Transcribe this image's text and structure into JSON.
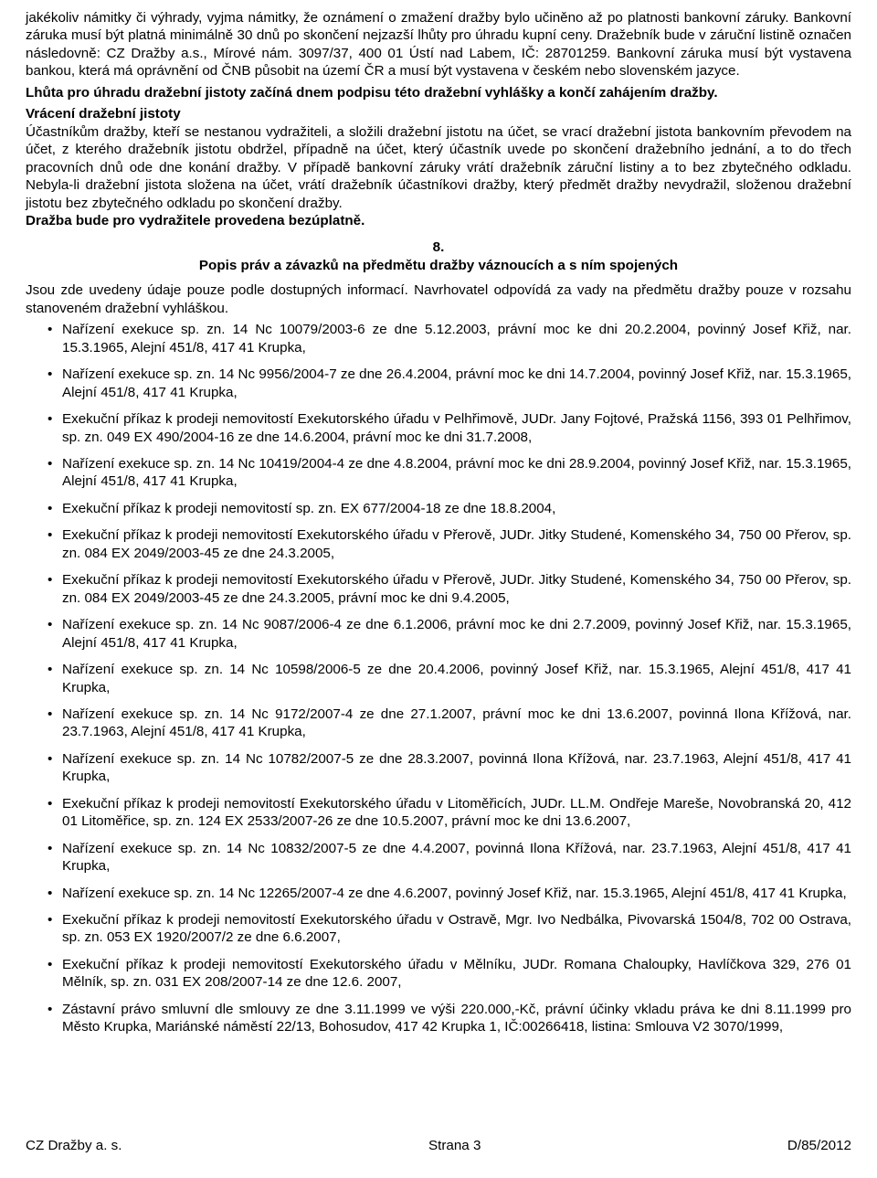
{
  "p1": "jakékoliv námitky či výhrady, vyjma námitky, že oznámení o zmažení dražby bylo učiněno až po platnosti bankovní záruky. Bankovní záruka musí být platná minimálně 30 dnů po skončení nejzazší lhůty pro úhradu kupní ceny. Dražebník bude v záruční listině označen následovně: CZ Dražby a.s., Mírové nám. 3097/37, 400 01 Ústí nad Labem, IČ: 28701259. Bankovní záruka musí být vystavena bankou, která má oprávnění od ČNB působit na území ČR a musí být vystavena v českém nebo slovenském jazyce.",
  "p2": "Lhůta pro úhradu dražební jistoty začíná dnem podpisu této dražební vyhlášky a končí zahájením dražby.",
  "p3_title": "Vrácení dražební jistoty",
  "p3": "Účastníkům dražby, kteří se nestanou vydražiteli, a složili dražební jistotu na účet, se vrací dražební jistota bankovním převodem na účet, z kterého dražebník jistotu obdržel, případně na účet, který účastník uvede po skončení dražebního jednání, a to do třech pracovních dnů ode dne konání dražby. V případě bankovní záruky vrátí dražebník záruční listiny a to bez zbytečného odkladu. Nebyla-li dražební jistota složena na účet, vrátí dražebník účastníkovi dražby, který předmět dražby nevydražil, složenou dražební jistotu bez zbytečného odkladu po skončení dražby.",
  "p4": "Dražba bude pro vydražitele provedena bezúplatně.",
  "section_num": "8.",
  "section_title": "Popis práv a závazků na předmětu dražby váznoucích a s ním spojených",
  "p5": "Jsou zde uvedeny údaje pouze podle dostupných informací. Navrhovatel odpovídá za vady na předmětu dražby pouze v rozsahu stanoveném dražební vyhláškou.",
  "items": [
    "Nařízení exekuce sp. zn. 14 Nc 10079/2003-6 ze dne 5.12.2003, právní moc ke dni 20.2.2004, povinný Josef Křiž, nar. 15.3.1965, Alejní 451/8, 417 41 Krupka,",
    "Nařízení exekuce sp. zn. 14 Nc 9956/2004-7 ze dne 26.4.2004, právní moc ke dni 14.7.2004, povinný Josef Křiž, nar. 15.3.1965, Alejní 451/8, 417 41 Krupka,",
    "Exekuční příkaz k prodeji nemovitostí Exekutorského úřadu v Pelhřimově, JUDr. Jany Fojtové, Pražská 1156, 393 01 Pelhřimov, sp. zn. 049 EX 490/2004-16 ze dne 14.6.2004, právní moc ke dni 31.7.2008,",
    "Nařízení exekuce sp. zn. 14 Nc 10419/2004-4 ze dne 4.8.2004, právní moc ke dni 28.9.2004, povinný Josef Křiž, nar. 15.3.1965, Alejní 451/8, 417 41 Krupka,",
    "Exekuční příkaz k prodeji nemovitostí sp. zn. EX 677/2004-18 ze dne 18.8.2004,",
    "Exekuční příkaz k prodeji nemovitostí Exekutorského úřadu v Přerově, JUDr. Jitky Studené, Komenského 34, 750 00 Přerov, sp. zn. 084 EX 2049/2003-45 ze dne 24.3.2005,",
    "Exekuční příkaz k prodeji nemovitostí Exekutorského úřadu v Přerově, JUDr. Jitky Studené, Komenského 34, 750 00 Přerov, sp. zn. 084 EX 2049/2003-45 ze dne 24.3.2005, právní moc ke dni 9.4.2005,",
    "Nařízení exekuce sp. zn. 14 Nc 9087/2006-4 ze dne 6.1.2006, právní moc ke dni 2.7.2009, povinný Josef Křiž, nar. 15.3.1965,  Alejní 451/8, 417 41 Krupka,",
    "Nařízení exekuce sp. zn. 14 Nc 10598/2006-5 ze dne 20.4.2006, povinný Josef Křiž, nar. 15.3.1965,  Alejní 451/8, 417 41 Krupka,",
    "Nařízení exekuce sp. zn. 14 Nc 9172/2007-4 ze dne 27.1.2007, právní moc ke dni 13.6.2007, povinná Ilona Křížová, nar. 23.7.1963, Alejní 451/8, 417 41 Krupka,",
    "Nařízení exekuce sp. zn. 14 Nc 10782/2007-5 ze dne 28.3.2007, povinná Ilona Křížová, nar. 23.7.1963, Alejní 451/8, 417 41 Krupka,",
    "Exekuční příkaz k prodeji nemovitostí Exekutorského úřadu v Litoměřicích, JUDr. LL.M. Ondřeje Mareše, Novobranská 20, 412 01 Litoměřice, sp. zn. 124 EX 2533/2007-26 ze dne 10.5.2007, právní moc ke dni 13.6.2007,",
    "Nařízení exekuce sp. zn. 14 Nc 10832/2007-5 ze dne 4.4.2007, povinná Ilona Křížová, nar. 23.7.1963,  Alejní 451/8, 417 41 Krupka,",
    "Nařízení exekuce sp. zn. 14 Nc 12265/2007-4 ze dne 4.6.2007, povinný Josef Křiž, nar. 15.3.1965,  Alejní 451/8, 417 41 Krupka,",
    "Exekuční příkaz k prodeji nemovitostí Exekutorského úřadu v Ostravě, Mgr. Ivo Nedbálka, Pivovarská 1504/8, 702 00 Ostrava, sp. zn. 053 EX 1920/2007/2 ze dne 6.6.2007,",
    "Exekuční příkaz k prodeji nemovitostí Exekutorského úřadu v Mělníku, JUDr. Romana Chaloupky, Havlíčkova 329, 276 01 Mělník, sp. zn. 031 EX 208/2007-14 ze dne 12.6. 2007,",
    "Zástavní právo smluvní dle smlouvy ze dne 3.11.1999 ve výši 220.000,-Kč, právní účinky vkladu práva ke dni 8.11.1999 pro Město Krupka, Mariánské náměstí 22/13, Bohosudov, 417 42 Krupka 1, IČ:00266418, listina: Smlouva V2 3070/1999,"
  ],
  "footer_left": "CZ Dražby a. s.",
  "footer_center": "Strana 3",
  "footer_right": "D/85/2012"
}
